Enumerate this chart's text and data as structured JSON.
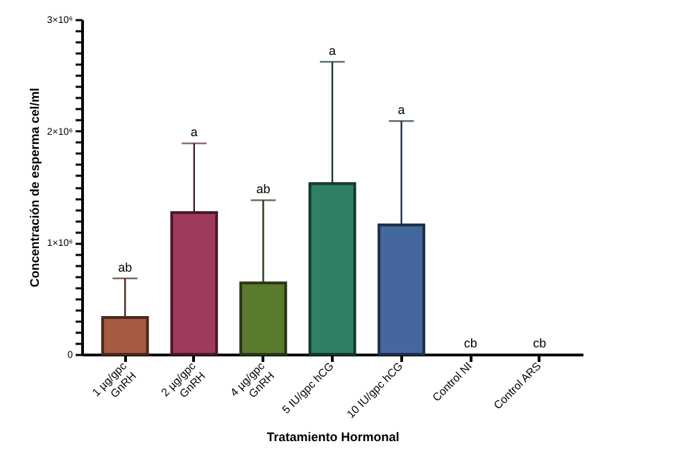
{
  "chart_data": {
    "type": "bar",
    "xlabel": "Tratamiento Hormonal",
    "ylabel": "Concentración de esperma cel/ml",
    "categories": [
      "1 µg/gpc\nGnRH",
      "2 µg/gpc\nGnRH",
      "4 µg/gpc\nGnRH",
      "5 IU/gpc hCG",
      "10 IU/gpc hCG",
      "Control NI",
      "Control ARS"
    ],
    "values": [
      330000,
      1270000,
      640000,
      1530000,
      1160000,
      0,
      0
    ],
    "errors": [
      [
        330000,
        680000
      ],
      [
        1270000,
        1890000
      ],
      [
        640000,
        1380000
      ],
      [
        1530000,
        2620000
      ],
      [
        1160000,
        2090000
      ],
      null,
      null
    ],
    "colors": [
      "#a65a3f",
      "#9e3a5c",
      "#5a7a2e",
      "#2e8066",
      "#44679e",
      "#888888",
      "#888888"
    ],
    "ylim": [
      0,
      3000000
    ],
    "yticks": [
      {
        "value": 0,
        "label": "0"
      },
      {
        "value": 100000,
        "label": null
      },
      {
        "value": 200000,
        "label": null
      },
      {
        "value": 300000,
        "label": null
      },
      {
        "value": 400000,
        "label": null
      },
      {
        "value": 500000,
        "label": null
      },
      {
        "value": 600000,
        "label": null
      },
      {
        "value": 700000,
        "label": null
      },
      {
        "value": 800000,
        "label": null
      },
      {
        "value": 900000,
        "label": null
      },
      {
        "value": 1000000,
        "label": "1×10⁶"
      },
      {
        "value": 1100000,
        "label": null
      },
      {
        "value": 1200000,
        "label": null
      },
      {
        "value": 1300000,
        "label": null
      },
      {
        "value": 1400000,
        "label": null
      },
      {
        "value": 1500000,
        "label": null
      },
      {
        "value": 1600000,
        "label": null
      },
      {
        "value": 1700000,
        "label": null
      },
      {
        "value": 1800000,
        "label": null
      },
      {
        "value": 1900000,
        "label": null
      },
      {
        "value": 2000000,
        "label": "2×10⁶"
      },
      {
        "value": 2100000,
        "label": null
      },
      {
        "value": 2200000,
        "label": null
      },
      {
        "value": 2300000,
        "label": null
      },
      {
        "value": 2400000,
        "label": null
      },
      {
        "value": 2500000,
        "label": null
      },
      {
        "value": 2600000,
        "label": null
      },
      {
        "value": 2700000,
        "label": null
      },
      {
        "value": 2800000,
        "label": null
      },
      {
        "value": 2900000,
        "label": null
      },
      {
        "value": 3000000,
        "label": "3×10⁶"
      }
    ],
    "grid": false,
    "annotations": [
      {
        "text": "ab",
        "x": "1 µg/gpc\nGnRH",
        "y": 680000
      },
      {
        "text": "a",
        "x": "2 µg/gpc\nGnRH",
        "y": 1890000
      },
      {
        "text": "ab",
        "x": "4 µg/gpc\nGnRH",
        "y": 1380000
      },
      {
        "text": "a",
        "x": "5 IU/gpc hCG",
        "y": 2620000
      },
      {
        "text": "a",
        "x": "10 IU/gpc hCG",
        "y": 2090000
      },
      {
        "text": "cb",
        "x": "Control NI",
        "y": 0
      },
      {
        "text": "cb",
        "x": "Control ARS",
        "y": 0
      }
    ]
  }
}
